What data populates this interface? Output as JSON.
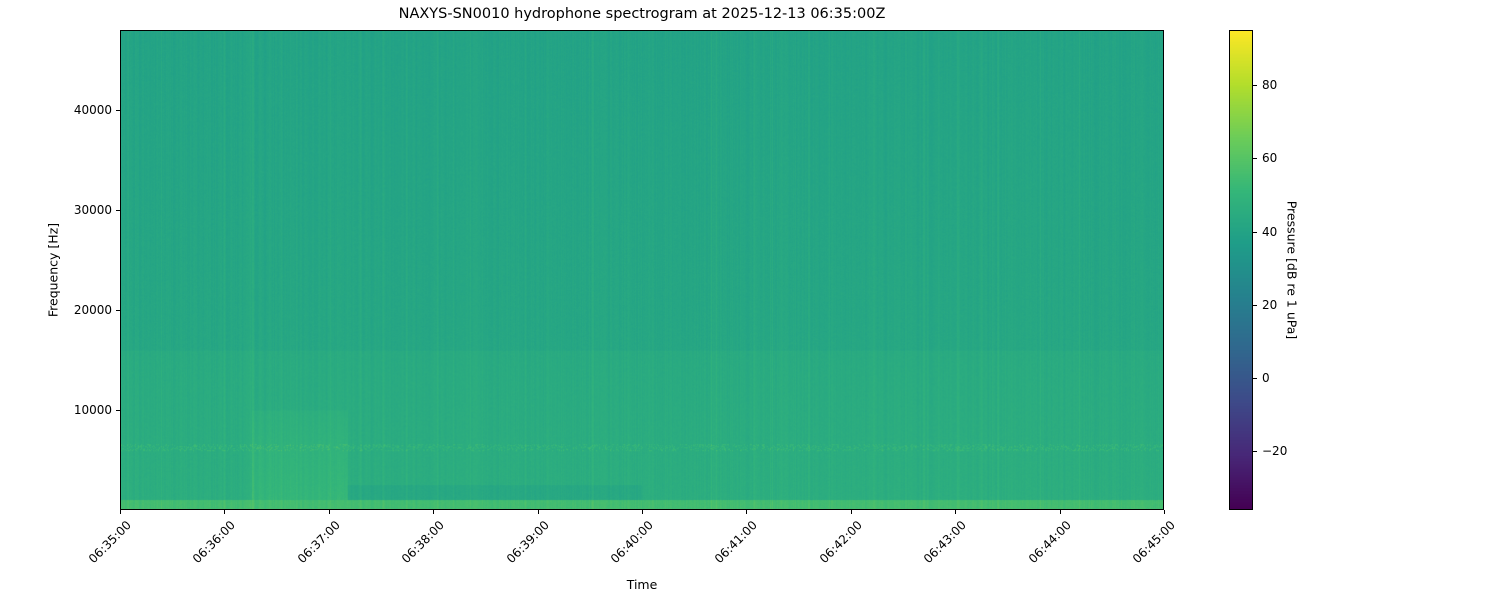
{
  "chart_data": {
    "type": "heatmap",
    "title": "NAXYS-SN0010 hydrophone spectrogram at 2025-12-13 06:35:00Z",
    "xlabel": "Time",
    "ylabel": "Frequency [Hz]",
    "colorbar_label": "Pressure [dB re 1 uPa]",
    "colormap": "viridis",
    "xlim": [
      "06:35:00",
      "06:45:00"
    ],
    "ylim": [
      0,
      48000
    ],
    "clim": [
      -36,
      95
    ],
    "x_ticks": [
      "06:35:00",
      "06:36:00",
      "06:37:00",
      "06:38:00",
      "06:39:00",
      "06:40:00",
      "06:41:00",
      "06:42:00",
      "06:43:00",
      "06:44:00",
      "06:45:00"
    ],
    "y_ticks": [
      10000,
      20000,
      30000,
      40000
    ],
    "colorbar_ticks": [
      -20,
      0,
      20,
      40,
      60,
      80
    ],
    "approx_levels_db": {
      "above_16000_hz": 40,
      "below_16000_hz": 46,
      "tonal_band_6200_hz": 52,
      "lowest_band_below_1000_hz": 55,
      "broadband_event_06_36_15_to_06_37_10_below_10000_hz": 52
    },
    "grid": false
  }
}
